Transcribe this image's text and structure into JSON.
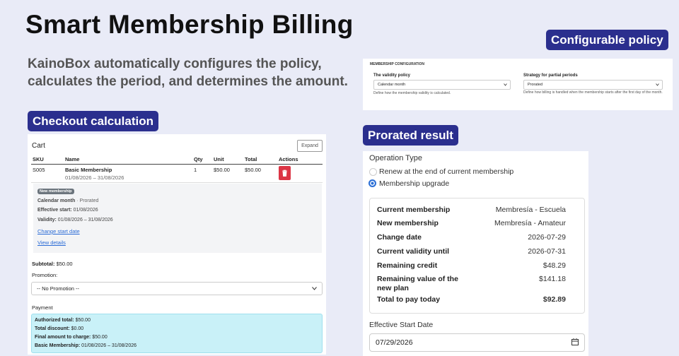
{
  "title": "Smart Membership Billing",
  "subtitle": "KainoBox automatically configures the policy, calculates the period, and determines the amount.",
  "policy": {
    "badge": "Configurable policy",
    "heading": "MEMBERSHIP CONFIGURATION",
    "fields": [
      {
        "label": "The validity policy",
        "value": "Calendar month",
        "help": "Define how the membership validity is calculated."
      },
      {
        "label": "Strategy for partial periods",
        "value": "Prorated",
        "help": "Define how billing is handled when the membership starts after the first day of the month."
      }
    ]
  },
  "checkout": {
    "badge": "Checkout calculation",
    "cart_title": "Cart",
    "expand": "Expand",
    "columns": [
      "SKU",
      "Name",
      "Qty",
      "Unit",
      "Total",
      "Actions"
    ],
    "row": {
      "sku": "S005",
      "name": "Basic Membership",
      "dates": "01/08/2026 – 31/08/2026",
      "qty": 1,
      "unit": "$50.00",
      "total": "$50.00"
    },
    "detail": {
      "tag": "New membership",
      "policy_label": "Calendar month",
      "policy_suffix": "· Prorated",
      "effective_label": "Effective start:",
      "effective_value": "01/08/2026",
      "validity_label": "Validity:",
      "validity_value": "01/08/2026 – 31/08/2026",
      "links": [
        "Change start date",
        "View details"
      ]
    },
    "subtotal_label": "Subtotal:",
    "subtotal_value": "$50.00",
    "promotion_label": "Promotion:",
    "promotion_value": "-- No Promotion --",
    "payment_label": "Payment",
    "summary": [
      {
        "label": "Authorized total:",
        "value": "$50.00"
      },
      {
        "label": "Total discount:",
        "value": "$0.00"
      },
      {
        "label": "Final amount to charge:",
        "value": "$50.00"
      },
      {
        "label": "Basic Membership:",
        "value": "01/08/2026 – 31/08/2026"
      }
    ]
  },
  "prorated": {
    "badge": "Prorated result",
    "operation_label": "Operation Type",
    "options": [
      "Renew at the end of current membership",
      "Membership upgrade"
    ],
    "rows": [
      {
        "label": "Current membership",
        "value": "Membresía - Escuela"
      },
      {
        "label": "New membership",
        "value": "Membresía - Amateur"
      },
      {
        "label": "Change date",
        "value": "2026-07-29"
      },
      {
        "label": "Current validity until",
        "value": "2026-07-31"
      },
      {
        "label": "Remaining credit",
        "value": "$48.29"
      },
      {
        "label": "Remaining value of the new plan",
        "value": "$141.18"
      },
      {
        "label": "Total to pay today",
        "value": "$92.89"
      }
    ],
    "effective_label": "Effective Start Date",
    "effective_value": "07/29/2026"
  }
}
